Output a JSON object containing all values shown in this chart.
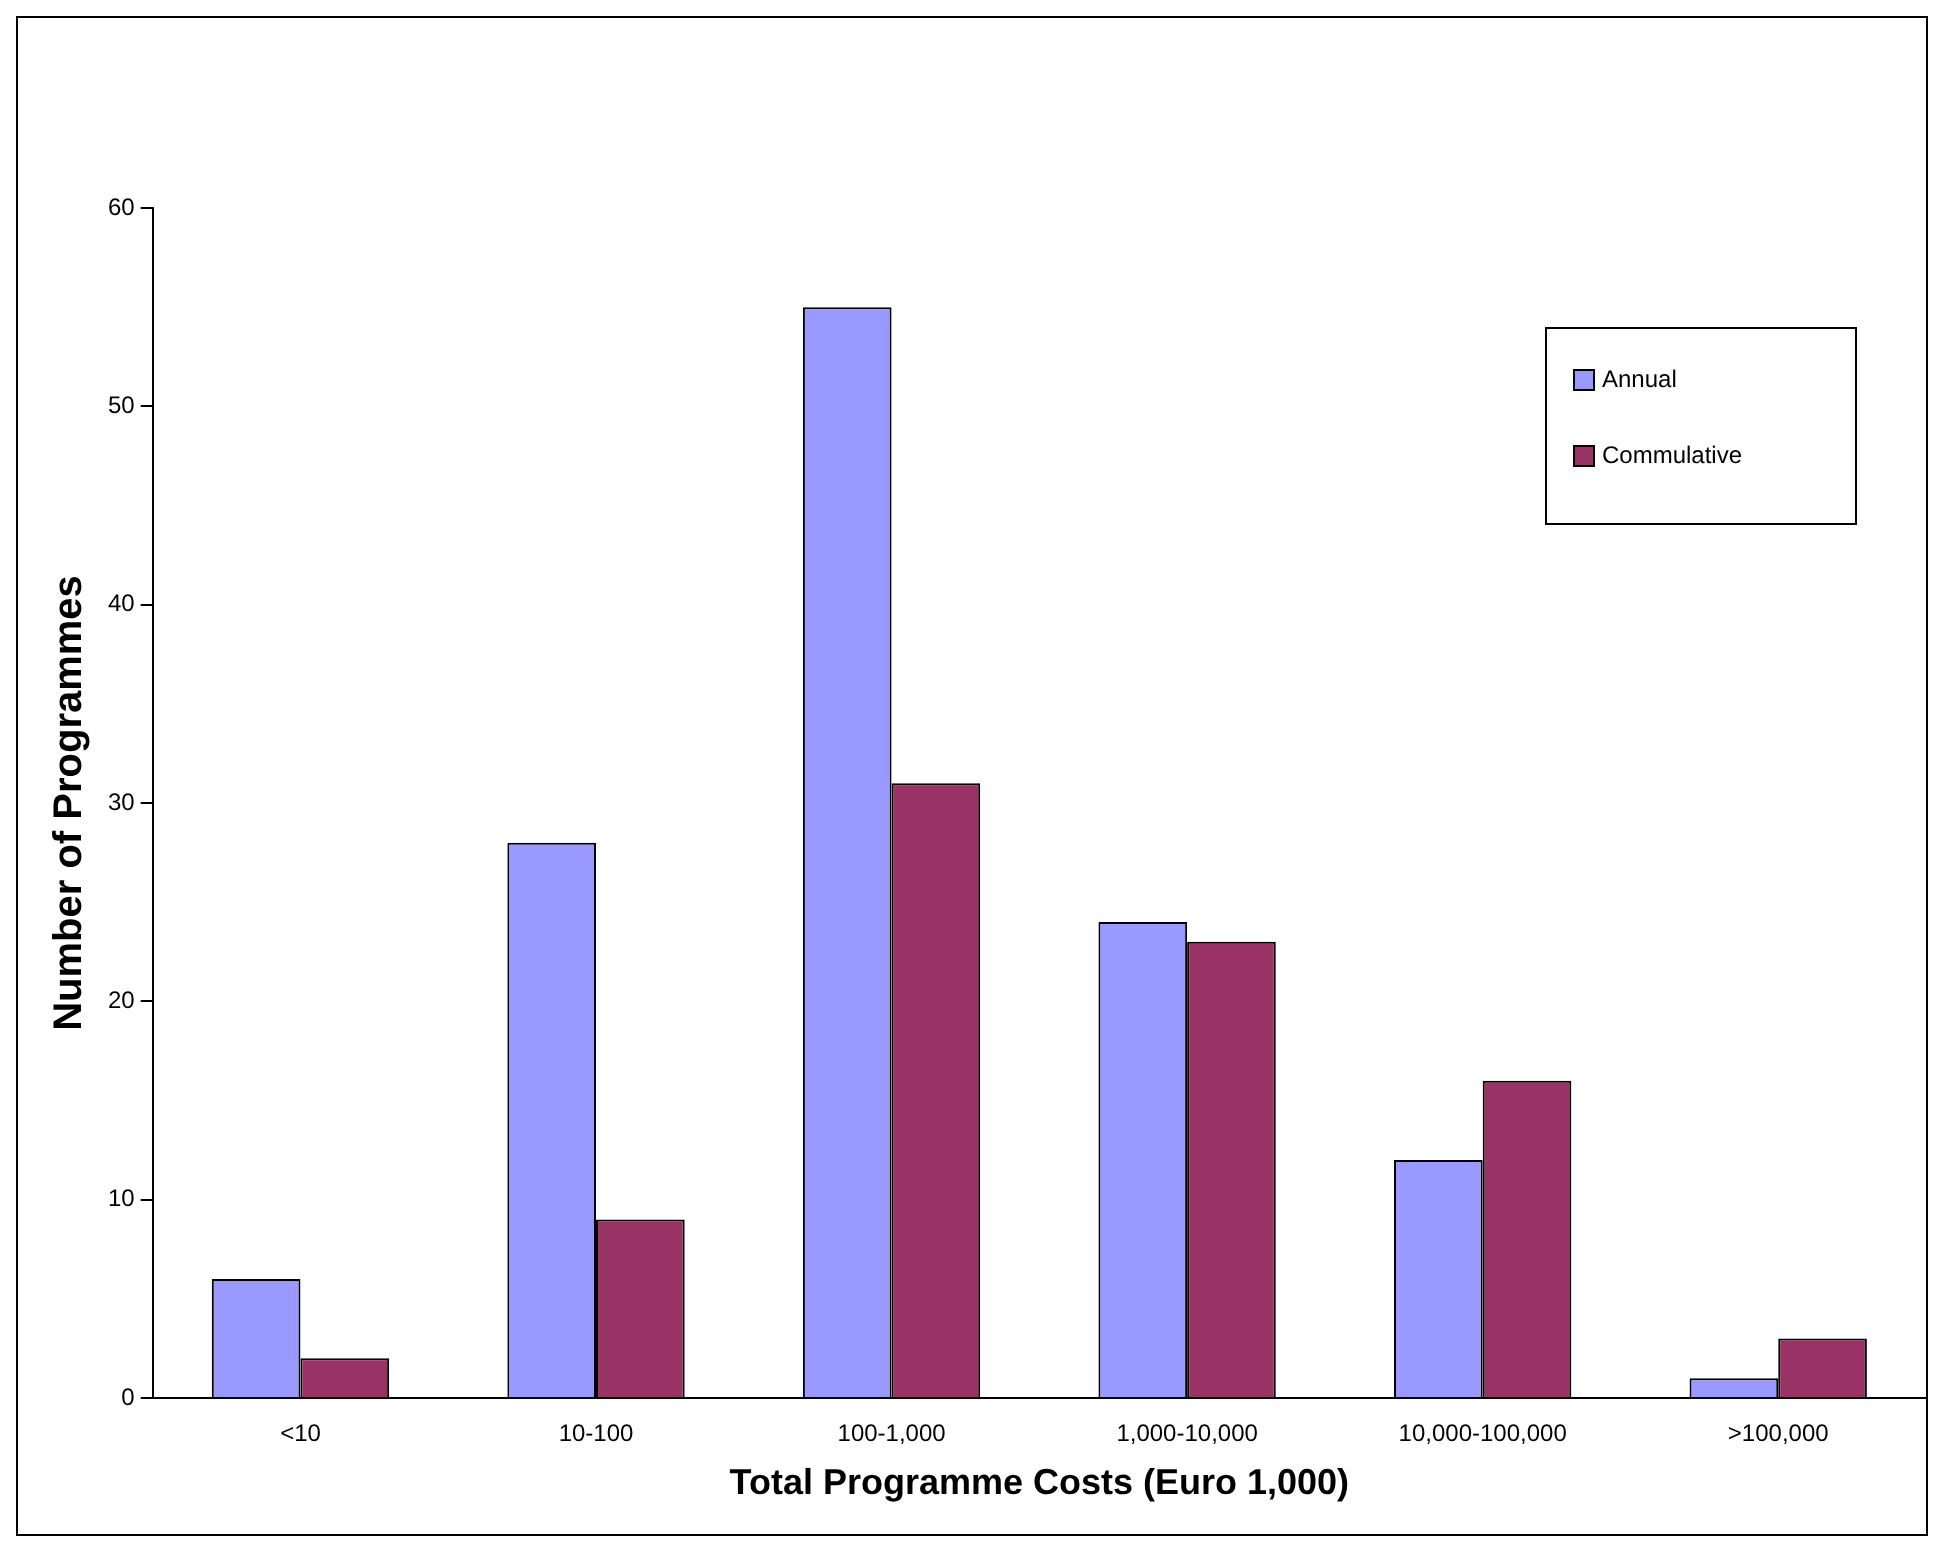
{
  "chart_data": {
    "type": "bar",
    "xlabel": "Total Programme Costs (Euro 1,000)",
    "ylabel": "Number of Programmes",
    "categories": [
      "<10",
      "10-100",
      "100-1,000",
      "1,000-10,000",
      "10,000-100,000",
      ">100,000"
    ],
    "series": [
      {
        "name": "Annual",
        "color": "#9999ff",
        "values": [
          6,
          28,
          55,
          24,
          12,
          1
        ]
      },
      {
        "name": "Commulative",
        "color": "#993366",
        "values": [
          2,
          9,
          31,
          23,
          16,
          3
        ]
      }
    ],
    "ylim": [
      0,
      60
    ],
    "yticks": [
      0,
      10,
      20,
      30,
      40,
      50,
      60
    ],
    "grid": false,
    "legend": "top right"
  }
}
